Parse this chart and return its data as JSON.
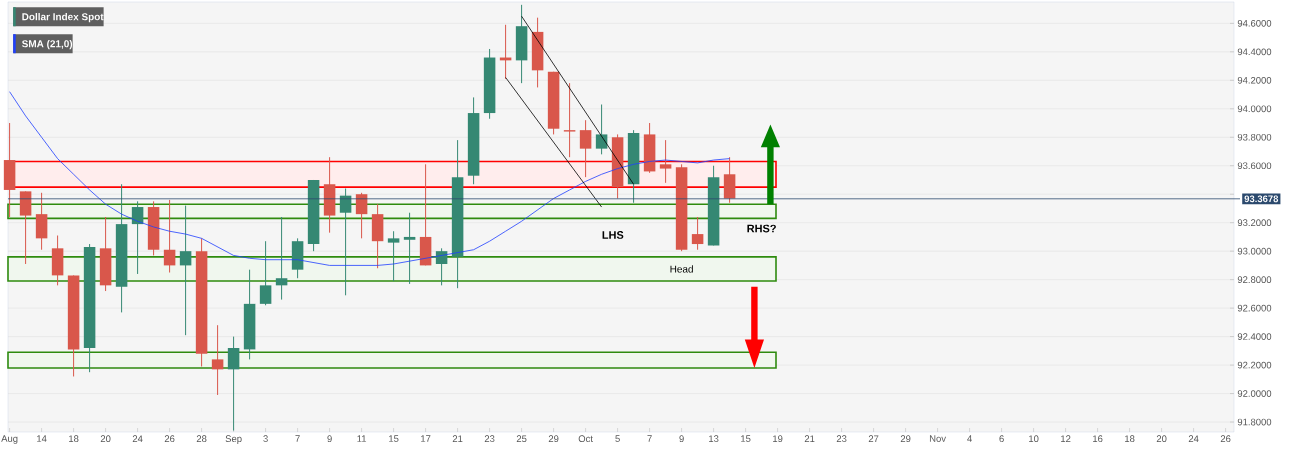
{
  "chart_data": {
    "type": "candlestick",
    "categories": [
      "Aug",
      null,
      "14",
      null,
      "18",
      null,
      "20",
      null,
      "24",
      null,
      "26",
      null,
      "28",
      null,
      "Sep",
      null,
      "3",
      null,
      "7",
      null,
      "9",
      null,
      "11",
      null,
      "15",
      null,
      "17",
      null,
      "21",
      null,
      "23",
      null,
      "25",
      null,
      "29",
      null,
      "Oct",
      null,
      "5",
      null,
      "7",
      null,
      "9",
      null,
      "13",
      null,
      "15",
      null,
      "19",
      null,
      "21",
      null,
      "23",
      null,
      "27",
      null,
      "29",
      null,
      "Nov",
      null,
      "4",
      null,
      "6",
      null,
      "10",
      null,
      "12",
      null,
      "16",
      null,
      "18",
      null,
      "20",
      null,
      "24",
      null,
      "26"
    ],
    "ylim": [
      91.73,
      94.75
    ],
    "yticks": [
      {
        "value": 91.8,
        "label": "91.8000"
      },
      {
        "value": 92.0,
        "label": "92.0000"
      },
      {
        "value": 92.2,
        "label": "92.2000"
      },
      {
        "value": 92.4,
        "label": "92.4000"
      },
      {
        "value": 92.6,
        "label": "92.6000"
      },
      {
        "value": 92.8,
        "label": "92.8000"
      },
      {
        "value": 93.0,
        "label": "93.0000"
      },
      {
        "value": 93.2,
        "label": "93.2000"
      },
      {
        "value": 93.4,
        "label": null
      },
      {
        "value": 93.6,
        "label": "93.6000"
      },
      {
        "value": 93.8,
        "label": "93.8000"
      },
      {
        "value": 94.0,
        "label": "94.0000"
      },
      {
        "value": 94.2,
        "label": "94.2000"
      },
      {
        "value": 94.4,
        "label": "94.4000"
      },
      {
        "value": 94.6,
        "label": "94.6000"
      }
    ],
    "grid": "y",
    "legend": "top left",
    "series": [
      {
        "type": "candlestick",
        "name": "Dollar Index Spot",
        "color": "#358873",
        "ohlc": [
          [
            93.64,
            93.9,
            93.24,
            93.43
          ],
          [
            93.42,
            93.42,
            92.91,
            93.25
          ],
          [
            93.26,
            93.41,
            93.01,
            93.09
          ],
          [
            93.02,
            93.11,
            92.76,
            92.83
          ],
          [
            92.83,
            92.83,
            92.12,
            92.31
          ],
          [
            92.32,
            93.05,
            92.15,
            93.03
          ],
          [
            93.02,
            93.24,
            92.72,
            92.76
          ],
          [
            92.75,
            93.47,
            92.57,
            93.19
          ],
          [
            93.19,
            93.35,
            92.84,
            93.31
          ],
          [
            93.31,
            93.35,
            92.97,
            93.01
          ],
          [
            93.01,
            93.36,
            92.85,
            92.9
          ],
          [
            92.9,
            93.32,
            92.41,
            93.0
          ],
          [
            93.0,
            93.09,
            92.19,
            92.28
          ],
          [
            92.24,
            92.48,
            91.99,
            92.17
          ],
          [
            92.17,
            92.4,
            91.74,
            92.32
          ],
          [
            92.31,
            92.87,
            92.24,
            92.63
          ],
          [
            92.63,
            93.07,
            92.62,
            92.76
          ],
          [
            92.76,
            93.24,
            92.66,
            92.81
          ],
          [
            92.87,
            93.09,
            92.81,
            93.07
          ],
          [
            93.05,
            93.5,
            93.0,
            93.5
          ],
          [
            93.47,
            93.66,
            93.13,
            93.25
          ],
          [
            93.27,
            93.44,
            92.69,
            93.39
          ],
          [
            93.4,
            93.41,
            93.09,
            93.26
          ],
          [
            93.26,
            93.33,
            92.88,
            93.07
          ],
          [
            93.06,
            93.14,
            92.79,
            93.09
          ],
          [
            93.08,
            93.27,
            92.77,
            93.1
          ],
          [
            93.1,
            93.61,
            92.9,
            92.9
          ],
          [
            92.91,
            93.02,
            92.76,
            93.0
          ],
          [
            92.96,
            93.78,
            92.74,
            93.52
          ],
          [
            93.53,
            94.08,
            93.47,
            93.97
          ],
          [
            93.97,
            94.42,
            93.93,
            94.36
          ],
          [
            94.36,
            94.59,
            94.21,
            94.34
          ],
          [
            94.34,
            94.73,
            94.18,
            94.58
          ],
          [
            94.54,
            94.64,
            94.15,
            94.27
          ],
          [
            94.26,
            94.26,
            93.82,
            93.86
          ],
          [
            93.85,
            94.18,
            93.66,
            93.84
          ],
          [
            93.85,
            93.92,
            93.52,
            93.72
          ],
          [
            93.72,
            94.03,
            93.68,
            93.82
          ],
          [
            93.8,
            93.82,
            93.37,
            93.45
          ],
          [
            93.47,
            93.85,
            93.34,
            93.83
          ],
          [
            93.82,
            93.9,
            93.55,
            93.56
          ],
          [
            93.61,
            93.78,
            93.48,
            93.58
          ],
          [
            93.59,
            93.61,
            93.0,
            93.01
          ],
          [
            93.12,
            93.24,
            93.01,
            93.05
          ],
          [
            93.04,
            93.6,
            93.04,
            93.52
          ],
          [
            93.54,
            93.66,
            93.34,
            93.37
          ],
          null,
          null,
          null,
          null,
          null,
          null,
          null,
          null,
          null,
          null,
          null,
          null,
          null,
          null,
          null,
          null,
          null,
          null,
          null,
          null,
          null,
          null,
          null,
          null,
          null,
          null,
          null,
          null,
          null,
          null,
          null
        ],
        "colors": [
          "#d9574b",
          "#d9574b",
          "#d9574b",
          "#d9574b",
          "#d9574b",
          "#358873",
          "#d9574b",
          "#358873",
          "#358873",
          "#d9574b",
          "#d9574b",
          "#358873",
          "#d9574b",
          "#d9574b",
          "#358873",
          "#358873",
          "#358873",
          "#358873",
          "#358873",
          "#358873",
          "#d9574b",
          "#358873",
          "#d9574b",
          "#d9574b",
          "#358873",
          "#358873",
          "#d9574b",
          "#358873",
          "#358873",
          "#358873",
          "#358873",
          "#d9574b",
          "#358873",
          "#d9574b",
          "#d9574b",
          "#d9574b",
          "#d9574b",
          "#358873",
          "#d9574b",
          "#358873",
          "#d9574b",
          "#d9574b",
          "#d9574b",
          "#d9574b",
          "#358873",
          "#d9574b",
          null,
          null,
          null,
          null,
          null,
          null,
          null,
          null,
          null,
          null,
          null,
          null,
          null,
          null,
          null,
          null,
          null,
          null,
          null,
          null,
          null,
          null,
          null,
          null,
          null,
          null,
          null,
          null,
          null,
          null,
          null
        ]
      },
      {
        "type": "line",
        "name": "SMA (21,0)",
        "color": "#1f3fff",
        "values": [
          94.12,
          93.95,
          93.8,
          93.65,
          93.54,
          93.43,
          93.33,
          93.26,
          93.21,
          93.17,
          93.14,
          93.12,
          93.09,
          93.03,
          92.97,
          92.95,
          92.94,
          92.94,
          92.94,
          92.92,
          92.9,
          92.9,
          92.9,
          92.9,
          92.91,
          92.93,
          92.95,
          92.97,
          92.99,
          93.01,
          93.07,
          93.14,
          93.21,
          93.29,
          93.37,
          93.43,
          93.49,
          93.54,
          93.58,
          93.61,
          93.63,
          93.64,
          93.63,
          93.62,
          93.64,
          93.65,
          null,
          null,
          null,
          null,
          null,
          null,
          null,
          null,
          null,
          null,
          null,
          null,
          null,
          null,
          null,
          null,
          null,
          null,
          null,
          null,
          null,
          null,
          null,
          null,
          null,
          null,
          null,
          null,
          null,
          null,
          null
        ]
      },
      {
        "type": "line",
        "color": "#000000",
        "values": [
          null,
          null,
          null,
          null,
          null,
          null,
          null,
          null,
          null,
          null,
          null,
          null,
          null,
          null,
          null,
          null,
          null,
          null,
          null,
          null,
          null,
          null,
          null,
          null,
          null,
          null,
          null,
          null,
          null,
          null,
          null,
          null,
          94.65,
          null,
          null,
          null,
          null,
          null,
          null,
          93.47,
          null,
          null,
          null,
          null,
          null,
          null,
          null,
          null,
          null,
          null,
          null,
          null,
          null,
          null,
          null,
          null,
          null,
          null,
          null,
          null,
          null,
          null,
          null,
          null,
          null,
          null,
          null,
          null,
          null,
          null,
          null,
          null,
          null,
          null,
          null,
          null,
          null
        ]
      },
      {
        "type": "line",
        "color": "#000000",
        "values": [
          null,
          null,
          null,
          null,
          null,
          null,
          null,
          null,
          null,
          null,
          null,
          null,
          null,
          null,
          null,
          null,
          null,
          null,
          null,
          null,
          null,
          null,
          null,
          null,
          null,
          null,
          null,
          null,
          null,
          null,
          null,
          94.22,
          null,
          null,
          null,
          null,
          null,
          93.31,
          null,
          null,
          null,
          null,
          null,
          null,
          null,
          null,
          null,
          null,
          null,
          null,
          null,
          null,
          null,
          null,
          null,
          null,
          null,
          null,
          null,
          null,
          null,
          null,
          null,
          null,
          null,
          null,
          null,
          null,
          null,
          null,
          null,
          null,
          null,
          null,
          null,
          null,
          null
        ]
      }
    ],
    "ref_lines": [
      {
        "axis": "y",
        "value": 93.3678,
        "label": "93.3678",
        "color": "#2c4a6e"
      }
    ],
    "bands": [
      {
        "axis": "y",
        "from": 93.45,
        "to": 93.63,
        "color": "#ff0000"
      },
      {
        "axis": "y",
        "from": 92.79,
        "to": 92.96,
        "label": "Head",
        "color": "#2e8b0e"
      },
      {
        "axis": "y",
        "from": 93.23,
        "to": 93.33,
        "label": "RHS?",
        "color": "#2e8b0e"
      },
      {
        "axis": "y",
        "from": 92.18,
        "to": 92.29,
        "color": "#2e8b0e"
      }
    ],
    "annotations": [
      "LHS"
    ]
  }
}
